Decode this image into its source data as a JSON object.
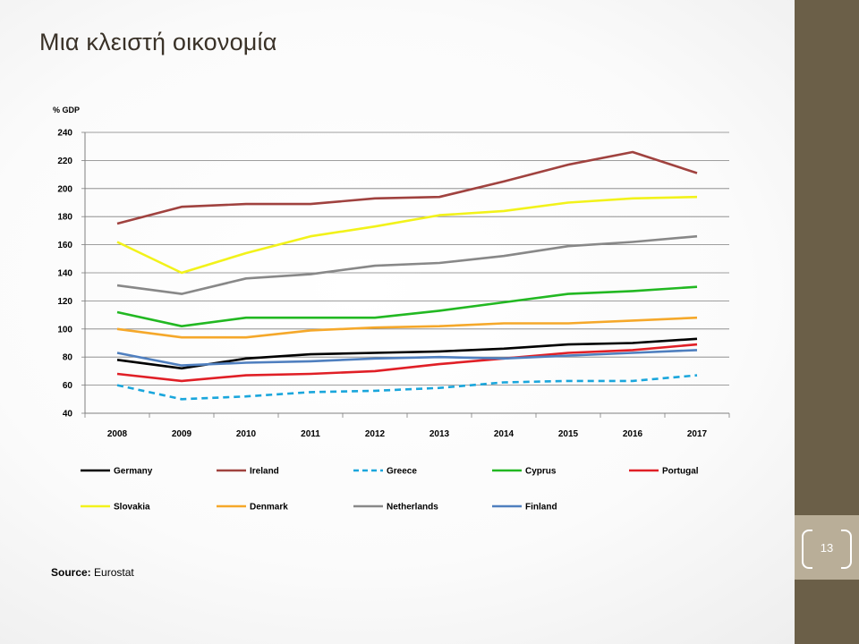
{
  "slide": {
    "title": "Μια κλειστή οικονομία",
    "page_number": "13",
    "source_label": "Source:",
    "source_value": "Eurostat"
  },
  "chart_data": {
    "type": "line",
    "title": "",
    "ylabel": "% GDP",
    "xlabel": "",
    "categories": [
      "2008",
      "2009",
      "2010",
      "2011",
      "2012",
      "2013",
      "2014",
      "2015",
      "2016",
      "2017"
    ],
    "ylim": [
      40,
      240
    ],
    "yticks": [
      40,
      60,
      80,
      100,
      120,
      140,
      160,
      180,
      200,
      220,
      240
    ],
    "grid": true,
    "legend_position": "bottom",
    "series": [
      {
        "name": "Germany",
        "color": "#000000",
        "dashed": false,
        "values": [
          78,
          72,
          79,
          82,
          83,
          84,
          86,
          89,
          90,
          93
        ]
      },
      {
        "name": "Ireland",
        "color": "#a0423f",
        "dashed": false,
        "values": [
          175,
          187,
          189,
          189,
          193,
          194,
          205,
          217,
          226,
          211
        ]
      },
      {
        "name": "Greece",
        "color": "#1aa6dc",
        "dashed": true,
        "values": [
          60,
          50,
          52,
          55,
          56,
          58,
          62,
          63,
          63,
          67
        ]
      },
      {
        "name": "Cyprus",
        "color": "#22b822",
        "dashed": false,
        "values": [
          112,
          102,
          108,
          108,
          108,
          113,
          119,
          125,
          127,
          130
        ]
      },
      {
        "name": "Portugal",
        "color": "#e01f26",
        "dashed": false,
        "values": [
          68,
          63,
          67,
          68,
          70,
          75,
          79,
          83,
          85,
          89
        ]
      },
      {
        "name": "Slovakia",
        "color": "#f2f21a",
        "dashed": false,
        "values": [
          162,
          140,
          154,
          166,
          173,
          181,
          184,
          190,
          193,
          194
        ]
      },
      {
        "name": "Denmark",
        "color": "#f5a82a",
        "dashed": false,
        "values": [
          100,
          94,
          94,
          99,
          101,
          102,
          104,
          104,
          106,
          108
        ]
      },
      {
        "name": "Netherlands",
        "color": "#888888",
        "dashed": false,
        "values": [
          131,
          125,
          136,
          139,
          145,
          147,
          152,
          159,
          162,
          166
        ]
      },
      {
        "name": "Finland",
        "color": "#4f7fbf",
        "dashed": false,
        "values": [
          83,
          74,
          76,
          77,
          79,
          80,
          79,
          81,
          83,
          85
        ]
      }
    ]
  }
}
